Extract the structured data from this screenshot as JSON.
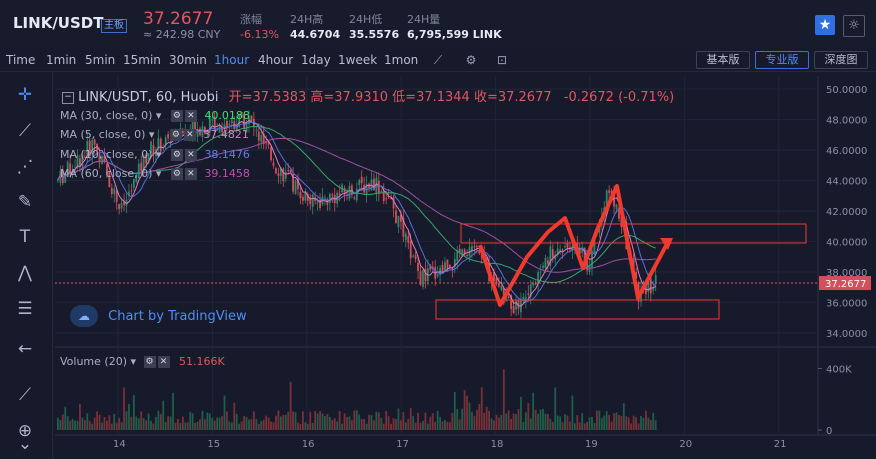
{
  "header": {
    "pair": "LINK/USDT",
    "tag": "主板",
    "price": "37.2677",
    "cny": "≈ 242.98 CNY",
    "stats": [
      {
        "label": "涨幅",
        "value": "-6.13%"
      },
      {
        "label": "24H高",
        "value": "44.6704"
      },
      {
        "label": "24H低",
        "value": "35.5576"
      },
      {
        "label": "24H量",
        "value": "6,795,599 LINK"
      }
    ],
    "star_icon": "star-icon",
    "theme_icon": "sun-icon"
  },
  "toolbar": {
    "timeframes": [
      "Time",
      "1min",
      "5min",
      "15min",
      "30min",
      "1hour",
      "4hour",
      "1day",
      "1week",
      "1mon"
    ],
    "active": "1hour",
    "views": [
      "基本版",
      "专业版",
      "深度图"
    ],
    "active_view": "专业版"
  },
  "chart": {
    "legend_title": "LINK/USDT, 60, Huobi",
    "ohlc": "开=37.5383  高=37.9310  低=37.1344  收=37.2677",
    "change": "-0.2672 (-0.71%)",
    "ma30": {
      "label": "MA (30, close, 0)",
      "value": "40.0188"
    },
    "ma5": {
      "label": "MA (5, close, 0)",
      "value": "37.4821"
    },
    "ma10": {
      "label": "MA (10, close, 0)",
      "value": "38.1476"
    },
    "ma60": {
      "label": "MA (60, close, 0)",
      "value": "39.1458"
    },
    "watermark": "Chart by TradingView",
    "volume_label": "Volume (20)",
    "volume_value": "51.166K",
    "last_price_tag": "37.2677",
    "y_ticks": [
      "50.0000",
      "48.0000",
      "46.0000",
      "44.0000",
      "42.0000",
      "40.0000",
      "38.0000",
      "36.0000",
      "34.0000"
    ],
    "vol_ticks": [
      "400K",
      "0"
    ],
    "x_ticks": [
      "14",
      "15",
      "16",
      "17",
      "18",
      "19",
      "20",
      "21"
    ],
    "colors": {
      "up": "#2a8a6a",
      "down": "#d3505a",
      "ma5": "#e07bc0",
      "ma10": "#5570d8",
      "ma30": "#37a66a",
      "ma60": "#a24fa6",
      "annotation": "#f03a2e"
    }
  }
}
